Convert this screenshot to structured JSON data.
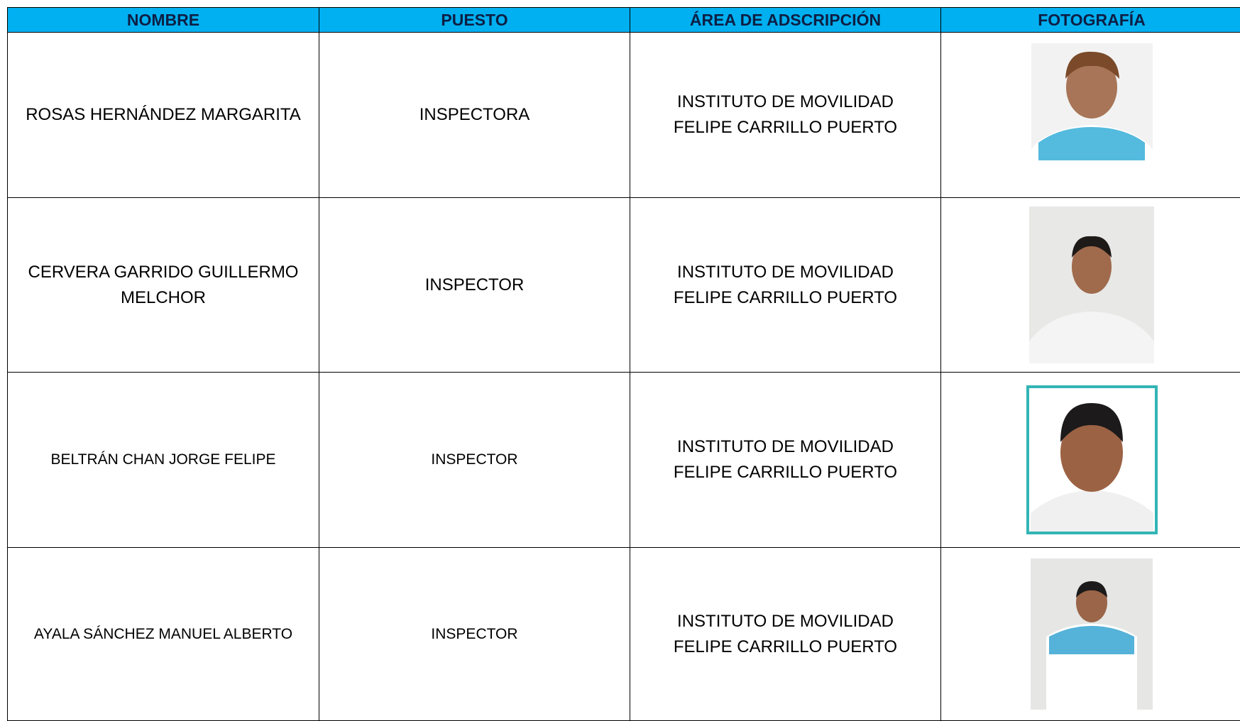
{
  "table": {
    "header": [
      "NOMBRE",
      "PUESTO",
      "ÁREA DE ADSCRIPCIÓN",
      "FOTOGRAFÍA"
    ],
    "rows": [
      [
        "ROSAS HERNÁNDEZ MARGARITA",
        "INSPECTORA",
        "INSTITUTO DE MOVILIDAD FELIPE CARRILLO PUERTO"
      ],
      [
        "CERVERA GARRIDO GUILLERMO MELCHOR",
        "INSPECTOR",
        "INSTITUTO DE MOVILIDAD FELIPE CARRILLO PUERTO"
      ],
      [
        "BELTRÁN CHAN JORGE FELIPE",
        "INSPECTOR",
        "INSTITUTO DE MOVILIDAD FELIPE CARRILLO PUERTO"
      ],
      [
        "AYALA SÁNCHEZ MANUEL ALBERTO",
        "INSPECTOR",
        "INSTITUTO DE MOVILIDAD FELIPE CARRILLO PUERTO"
      ]
    ]
  }
}
